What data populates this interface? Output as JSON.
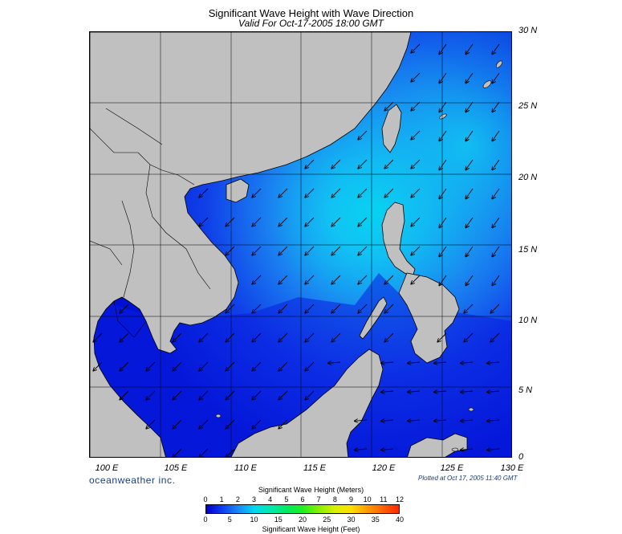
{
  "title": "Significant Wave Height with Wave Direction",
  "subtitle": "Valid For Oct-17-2005 18:00 GMT",
  "lat_labels": [
    "30 N",
    "25 N",
    "20 N",
    "15 N",
    "10 N",
    "5 N",
    "0"
  ],
  "lon_labels": [
    "100 E",
    "105 E",
    "110 E",
    "115 E",
    "120 E",
    "125 E",
    "130 E"
  ],
  "brand": "oceanweather inc.",
  "plotted": "Plotted at Oct 17, 2005 11:40 GMT",
  "colorbar": {
    "meters_title": "Significant Wave Height (Meters)",
    "meters_ticks": [
      "0",
      "1",
      "2",
      "3",
      "4",
      "5",
      "6",
      "7",
      "8",
      "9",
      "10",
      "11",
      "12"
    ],
    "feet_title": "Significant Wave Height (Feet)",
    "feet_ticks": [
      "0",
      "5",
      "10",
      "15",
      "20",
      "25",
      "30",
      "35",
      "40"
    ]
  },
  "colors": {
    "land": "#c0c0c0",
    "sea_low": "#0000d8",
    "sea_mid": "#1a70f0",
    "sea_high": "#00f0f0"
  }
}
